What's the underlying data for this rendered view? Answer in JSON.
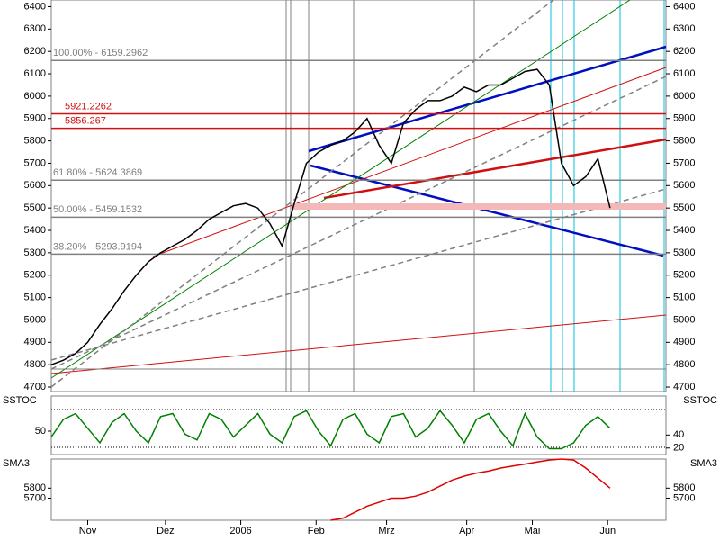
{
  "chart_data": [
    {
      "type": "line",
      "xlim": [
        0,
        253
      ],
      "xticks": [
        {
          "value": 15,
          "label": "Nov"
        },
        {
          "value": 47,
          "label": "Dez"
        },
        {
          "value": 78,
          "label": "2006"
        },
        {
          "value": 109,
          "label": "Feb"
        },
        {
          "value": 138,
          "label": "Mrz"
        },
        {
          "value": 171,
          "label": "Apr"
        },
        {
          "value": 198,
          "label": "Mai"
        },
        {
          "value": 229,
          "label": "Jun"
        }
      ],
      "ylim": [
        4680,
        6430
      ],
      "yticks": [
        4700,
        4800,
        4900,
        5000,
        5100,
        5200,
        5300,
        5400,
        5500,
        5600,
        5700,
        5800,
        5900,
        6000,
        6100,
        6200,
        6300,
        6400
      ],
      "x": [
        0,
        5,
        10,
        15,
        20,
        25,
        30,
        35,
        40,
        45,
        50,
        55,
        60,
        65,
        70,
        75,
        80,
        85,
        90,
        95,
        100,
        105,
        110,
        115,
        120,
        125,
        130,
        135,
        140,
        145,
        150,
        155,
        160,
        165,
        170,
        175,
        180,
        185,
        190,
        195,
        200,
        205,
        210,
        215,
        220,
        225,
        230
      ],
      "series": [
        {
          "color": "#000000",
          "values": [
            4800,
            4820,
            4850,
            4900,
            4980,
            5050,
            5130,
            5200,
            5260,
            5300,
            5330,
            5360,
            5400,
            5450,
            5480,
            5510,
            5520,
            5500,
            5430,
            5330,
            5520,
            5700,
            5750,
            5780,
            5800,
            5840,
            5900,
            5780,
            5700,
            5880,
            5940,
            5980,
            5980,
            6000,
            6040,
            6020,
            6050,
            6050,
            6080,
            6110,
            6120,
            6050,
            5700,
            5600,
            5640,
            5720,
            5500
          ]
        }
      ],
      "levels": [
        {
          "label": "100.00% - 6159.2962",
          "value": 6159.2962,
          "color": "#808080"
        },
        {
          "label": "61.80% - 5624.3869",
          "value": 5624.3869,
          "color": "#808080"
        },
        {
          "label": "50.00% - 5459.1532",
          "value": 5459.1532,
          "color": "#808080"
        },
        {
          "label": "38.20% - 5293.9194",
          "value": 5293.9194,
          "color": "#808080"
        },
        {
          "label": "5921.2262",
          "value": 5921.2262,
          "color": "#d01010"
        },
        {
          "label": "5856.267",
          "value": 5856.267,
          "color": "#d01010"
        }
      ]
    },
    {
      "type": "line",
      "title": "SSTOC",
      "ylim": [
        10,
        110
      ],
      "yticks": [
        50
      ],
      "y2lim": [
        10,
        100
      ],
      "y2ticks": [
        40,
        20
      ],
      "x": [
        0,
        5,
        10,
        15,
        20,
        25,
        30,
        35,
        40,
        45,
        50,
        55,
        60,
        65,
        70,
        75,
        80,
        85,
        90,
        95,
        100,
        105,
        110,
        115,
        120,
        125,
        130,
        135,
        140,
        145,
        150,
        155,
        160,
        165,
        170,
        175,
        180,
        185,
        190,
        195,
        200,
        205,
        210,
        215,
        220,
        225,
        230
      ],
      "series": [
        {
          "color": "#008000",
          "values": [
            40,
            70,
            80,
            55,
            30,
            65,
            80,
            50,
            30,
            75,
            80,
            45,
            35,
            80,
            70,
            40,
            60,
            80,
            45,
            30,
            75,
            85,
            50,
            25,
            70,
            80,
            45,
            30,
            75,
            80,
            40,
            55,
            85,
            60,
            30,
            70,
            80,
            50,
            25,
            80,
            40,
            20,
            20,
            30,
            60,
            75,
            55
          ]
        }
      ]
    },
    {
      "type": "line",
      "title": "SMA3",
      "ylim": [
        5480,
        6090
      ],
      "yticks": [
        5800,
        5700
      ],
      "x": [
        115,
        120,
        125,
        130,
        135,
        140,
        145,
        150,
        155,
        160,
        165,
        170,
        175,
        180,
        185,
        190,
        195,
        200,
        205,
        210,
        215,
        220,
        225,
        230
      ],
      "series": [
        {
          "color": "#e00000",
          "values": [
            5480,
            5500,
            5560,
            5620,
            5660,
            5700,
            5700,
            5720,
            5760,
            5820,
            5880,
            5920,
            5950,
            5970,
            6000,
            6020,
            6040,
            6060,
            6080,
            6090,
            6080,
            6000,
            5900,
            5800
          ]
        }
      ]
    }
  ]
}
